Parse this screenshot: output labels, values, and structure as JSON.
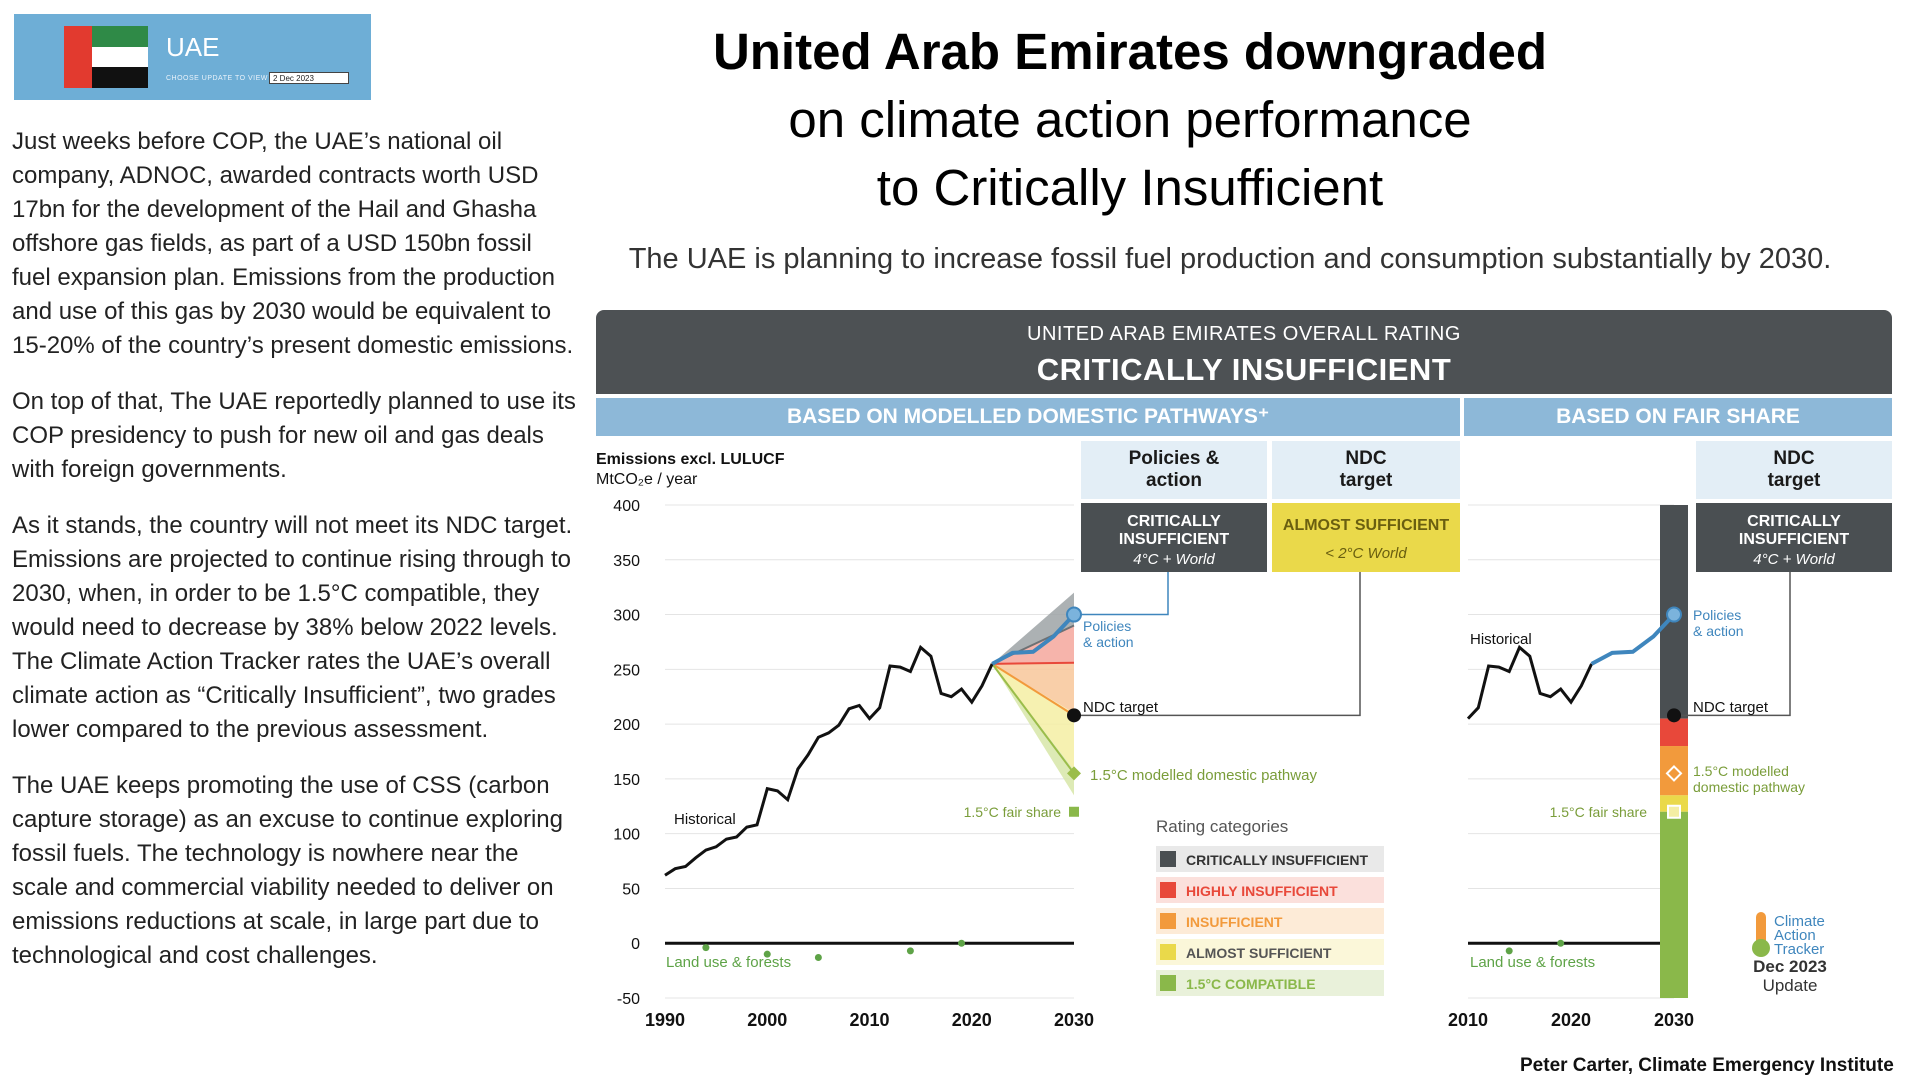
{
  "banner": {
    "country": "UAE",
    "choose_label": "CHOOSE UPDATE TO VIEW",
    "selected_update": "2 Dec 2023"
  },
  "article": {
    "paragraphs": [
      "Just weeks before COP, the UAE’s national oil company, ADNOC, awarded contracts worth USD 17bn for the development of the Hail and Ghasha offshore gas fields, as part of a USD 150bn fossil fuel expansion plan. Emissions from the production and use of this gas by 2030 would be equivalent to 15-20% of the country’s present domestic emissions.",
      "On top of that, The UAE reportedly planned to use its COP presidency to push for new oil and gas deals with foreign governments.",
      "As it stands, the country will not meet its NDC target. Emissions are projected to continue rising through to 2030, when, in order to be 1.5°C compatible, they would need to decrease by 38% below 2022 levels. The Climate Action Tracker  rates the UAE’s overall climate action as “Critically Insufficient”, two grades lower compared to the previous assessment.",
      "The UAE keeps promoting the use of CSS (carbon capture storage) as an excuse to continue exploring fossil fuels. The technology is nowhere near the scale and commercial viability needed to deliver on emissions reductions at scale, in large part due to technological and cost challenges."
    ]
  },
  "title": {
    "line1": "United Arab Emirates downgraded",
    "line2": "on climate action performance",
    "line3": "to Critically Insufficient"
  },
  "subtitle": "The UAE is planning to increase fossil fuel production and consumption substantially by 2030.",
  "panel": {
    "overline": "UNITED ARAB EMIRATES OVERALL RATING",
    "rating": "CRITICALLY INSUFFICIENT",
    "section_modelled": "BASED ON MODELLED DOMESTIC PATHWAYS⁺",
    "section_fair": "BASED ON FAIR SHARE",
    "col_policies": "Policies & action",
    "col_ndc": "NDC target",
    "col_fair_ndc": "NDC target",
    "policies_rating": "CRITICALLY INSUFFICIENT",
    "policies_world": "4°C + World",
    "ndc_rating": "ALMOST SUFFICIENT",
    "ndc_world": "< 2°C World",
    "fair_rating": "CRITICALLY INSUFFICIENT",
    "fair_world": "4°C + World"
  },
  "legend": {
    "title": "Rating categories",
    "items": [
      {
        "label": "CRITICALLY INSUFFICIENT",
        "color": "#4a4f52"
      },
      {
        "label": "HIGHLY INSUFFICIENT",
        "color": "#e8483a"
      },
      {
        "label": "INSUFFICIENT",
        "color": "#f29a3c"
      },
      {
        "label": "ALMOST SUFFICIENT",
        "color": "#ead94a"
      },
      {
        "label": "1.5°C COMPATIBLE",
        "color": "#8ab84a"
      }
    ]
  },
  "logo": {
    "l1": "Climate",
    "l2": "Action",
    "l3": "Tracker",
    "date": "Dec 2023",
    "update": "Update"
  },
  "credit": "Peter Carter, Climate Emergency Institute",
  "colors": {
    "critically": "#4a4f52",
    "highly": "#e8483a",
    "insufficient": "#f29a3c",
    "almost": "#ead94a",
    "compatible": "#8ab84a",
    "policies": "#3f86bd"
  },
  "chart_data": [
    {
      "type": "line",
      "ylabel_line1": "Emissions excl. LULUCF",
      "ylabel_line2": "MtCO₂e / year",
      "ylim": [
        -50,
        400
      ],
      "yticks": [
        400,
        350,
        300,
        250,
        200,
        150,
        100,
        50,
        0,
        -50
      ],
      "xlim": [
        1990,
        2030
      ],
      "xticks": [
        1990,
        2000,
        2010,
        2020,
        2030
      ],
      "historical_label": "Historical",
      "historical": {
        "x": [
          1990,
          1991,
          1992,
          1993,
          1994,
          1995,
          1996,
          1997,
          1998,
          1999,
          2000,
          2001,
          2002,
          2003,
          2004,
          2005,
          2006,
          2007,
          2008,
          2009,
          2010,
          2011,
          2012,
          2013,
          2014,
          2015,
          2016,
          2017,
          2018,
          2019,
          2020,
          2021,
          2022
        ],
        "y": [
          62,
          68,
          70,
          78,
          85,
          88,
          95,
          97,
          106,
          108,
          141,
          139,
          131,
          159,
          172,
          188,
          192,
          199,
          214,
          217,
          205,
          215,
          253,
          252,
          248,
          270,
          262,
          228,
          225,
          232,
          220,
          235,
          255
        ]
      },
      "policies_label": "Policies & action",
      "policies": {
        "x": [
          2022,
          2024,
          2026,
          2028,
          2030
        ],
        "y": [
          255,
          265,
          266,
          280,
          300
        ]
      },
      "ndc_label": "NDC target",
      "ndc_target": {
        "x": 2030,
        "y": 208
      },
      "pathway_label": "1.5°C modelled domestic pathway",
      "modelled_pathway": {
        "x": 2030,
        "y": 155
      },
      "fair_share_label": "1.5°C fair share",
      "fair_share": {
        "x": 2030,
        "y": 120
      },
      "land_label": "Land use & forests",
      "land_use": {
        "x": [
          1994,
          2000,
          2005,
          2014,
          2019
        ],
        "y": [
          -4,
          -10,
          -13,
          -7,
          0
        ]
      },
      "bands_2030": [
        {
          "name": "critically",
          "from": 320,
          "to": 290
        },
        {
          "name": "highly",
          "from": 290,
          "to": 256
        },
        {
          "name": "insufficient",
          "from": 256,
          "to": 210
        },
        {
          "name": "almost",
          "from": 210,
          "to": 158
        },
        {
          "name": "compatible",
          "from": 158,
          "to": 135
        }
      ]
    },
    {
      "type": "line",
      "xlim": [
        2010,
        2030
      ],
      "xticks": [
        2010,
        2020,
        2030
      ],
      "historical_label": "Historical",
      "historical": {
        "x": [
          2010,
          2011,
          2012,
          2013,
          2014,
          2015,
          2016,
          2017,
          2018,
          2019,
          2020,
          2021,
          2022
        ],
        "y": [
          205,
          215,
          253,
          252,
          248,
          270,
          262,
          228,
          225,
          232,
          220,
          235,
          255
        ]
      },
      "policies_label": "Policies & action",
      "policies": {
        "x": [
          2022,
          2024,
          2026,
          2028,
          2030
        ],
        "y": [
          255,
          265,
          266,
          280,
          300
        ]
      },
      "ndc_label": "NDC target",
      "ndc_target": {
        "x": 2030,
        "y": 208
      },
      "pathway_label": "1.5°C modelled domestic pathway",
      "modelled_pathway": {
        "x": 2030,
        "y": 155
      },
      "fair_share_label": "1.5°C fair share",
      "fair_share": {
        "x": 2030,
        "y": 120
      },
      "land_label": "Land use & forests",
      "land_use": {
        "x": [
          2014,
          2019
        ],
        "y": [
          -7,
          0
        ]
      },
      "fair_share_bar": [
        {
          "name": "critically",
          "from": 400,
          "to": 205
        },
        {
          "name": "highly",
          "from": 205,
          "to": 180
        },
        {
          "name": "insufficient",
          "from": 180,
          "to": 135
        },
        {
          "name": "almost",
          "from": 135,
          "to": 120
        },
        {
          "name": "compatible",
          "from": 120,
          "to": -50
        }
      ]
    }
  ]
}
